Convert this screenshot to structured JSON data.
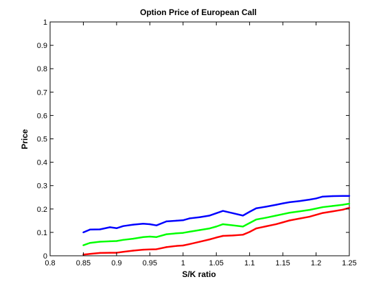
{
  "chart_data": {
    "type": "line",
    "title": "Option Price of European Call",
    "xlabel": "S/K ratio",
    "ylabel": "Price",
    "xlim": [
      0.8,
      1.25
    ],
    "ylim": [
      0,
      1
    ],
    "grid": false,
    "x_ticks": [
      "0.8",
      "0.85",
      "0.9",
      "0.95",
      "1",
      "1.05",
      "1.1",
      "1.15",
      "1.2",
      "1.25"
    ],
    "y_ticks": [
      "0",
      "0.1",
      "0.2",
      "0.3",
      "0.4",
      "0.5",
      "0.6",
      "0.7",
      "0.8",
      "0.9",
      "1"
    ],
    "x": [
      0.85,
      0.86,
      0.875,
      0.89,
      0.9,
      0.91,
      0.925,
      0.94,
      0.95,
      0.96,
      0.975,
      0.99,
      1.0,
      1.01,
      1.025,
      1.04,
      1.05,
      1.06,
      1.075,
      1.09,
      1.1,
      1.11,
      1.125,
      1.14,
      1.15,
      1.16,
      1.175,
      1.19,
      1.2,
      1.21,
      1.225,
      1.24,
      1.25
    ],
    "series": [
      {
        "color": "#0000ff",
        "values": [
          0.1,
          0.112,
          0.113,
          0.122,
          0.118,
          0.127,
          0.133,
          0.137,
          0.135,
          0.13,
          0.147,
          0.15,
          0.152,
          0.16,
          0.165,
          0.172,
          0.182,
          0.192,
          0.182,
          0.172,
          0.188,
          0.203,
          0.21,
          0.218,
          0.224,
          0.229,
          0.234,
          0.24,
          0.245,
          0.253,
          0.255,
          0.256,
          0.256
        ]
      },
      {
        "color": "#00ff00",
        "values": [
          0.045,
          0.055,
          0.06,
          0.062,
          0.063,
          0.068,
          0.073,
          0.08,
          0.082,
          0.08,
          0.092,
          0.096,
          0.098,
          0.103,
          0.11,
          0.117,
          0.125,
          0.135,
          0.13,
          0.125,
          0.14,
          0.155,
          0.163,
          0.172,
          0.178,
          0.184,
          0.19,
          0.196,
          0.202,
          0.208,
          0.213,
          0.218,
          0.223
        ]
      },
      {
        "color": "#ff0000",
        "values": [
          0.005,
          0.008,
          0.012,
          0.013,
          0.013,
          0.017,
          0.022,
          0.026,
          0.027,
          0.028,
          0.037,
          0.042,
          0.044,
          0.05,
          0.06,
          0.07,
          0.078,
          0.085,
          0.087,
          0.09,
          0.102,
          0.117,
          0.126,
          0.135,
          0.143,
          0.151,
          0.159,
          0.167,
          0.175,
          0.183,
          0.19,
          0.197,
          0.205
        ]
      }
    ]
  }
}
